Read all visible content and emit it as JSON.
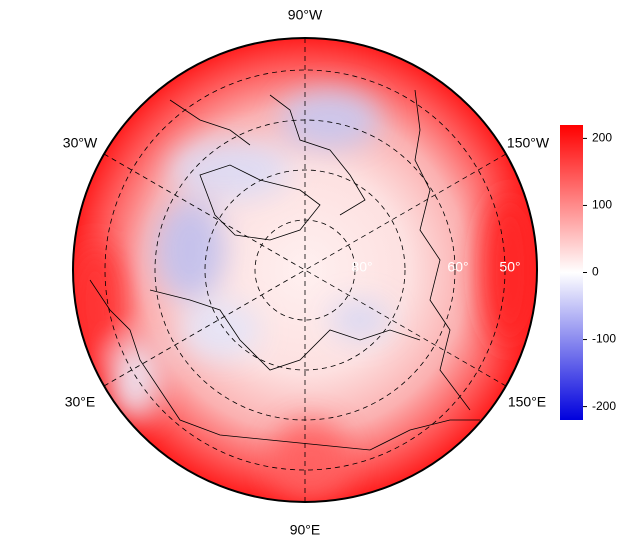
{
  "map": {
    "longitude_labels": [
      "90°W",
      "30°W",
      "150°W",
      "30°E",
      "150°E",
      "90°E"
    ],
    "latitude_labels": [
      "80°",
      "60°",
      "50°"
    ],
    "colorbar": {
      "lim": [
        -220,
        220
      ],
      "ticks": [
        200,
        100,
        0,
        -100,
        -200
      ]
    }
  }
}
